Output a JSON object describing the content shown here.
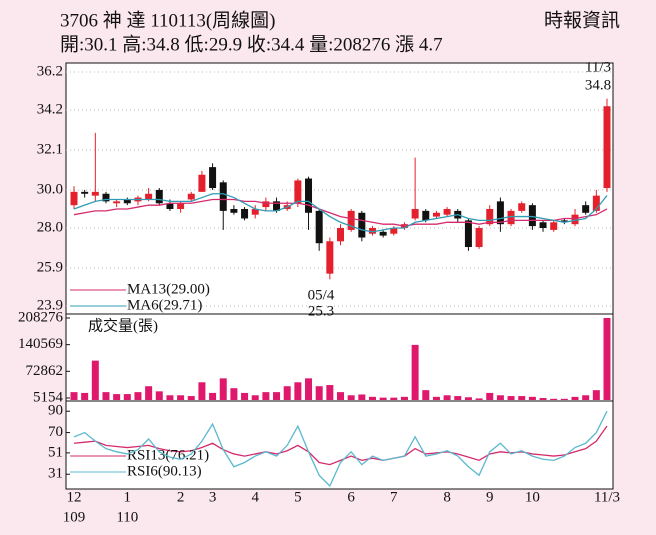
{
  "header": {
    "title": "3706  神    達 110113(周線圖)",
    "source": "時報資訊",
    "quote": "開:30.1 高:34.8 低:29.9 收:34.4 量:208276 漲 4.7"
  },
  "chart_data": [
    {
      "type": "candlestick",
      "categories": [
        "12",
        null,
        null,
        null,
        null,
        "1",
        null,
        null,
        null,
        null,
        "2",
        null,
        null,
        "3",
        null,
        null,
        null,
        "4",
        null,
        null,
        null,
        "5",
        null,
        null,
        null,
        null,
        "6",
        null,
        null,
        null,
        "7",
        null,
        null,
        null,
        null,
        "8",
        null,
        null,
        null,
        "9",
        null,
        null,
        null,
        "10",
        null,
        null,
        null,
        null,
        null,
        null,
        "11/3"
      ],
      "category_sublabels": [
        "109",
        null,
        null,
        null,
        null,
        "110",
        null,
        null,
        null,
        null,
        null,
        null,
        null,
        null,
        null,
        null,
        null,
        null,
        null,
        null,
        null,
        null,
        null,
        null,
        null,
        null,
        null,
        null,
        null,
        null,
        null,
        null,
        null,
        null,
        null,
        null,
        null,
        null,
        null,
        null,
        null,
        null,
        null,
        null,
        null,
        null,
        null,
        null,
        null,
        null,
        null
      ],
      "open": [
        29.2,
        29.9,
        29.7,
        29.8,
        29.3,
        29.5,
        29.4,
        29.5,
        30.0,
        29.3,
        29.0,
        29.5,
        29.9,
        31.2,
        30.4,
        29.0,
        29.0,
        28.7,
        29.1,
        29.4,
        29.0,
        29.3,
        30.6,
        28.9,
        25.6,
        27.3,
        27.9,
        28.8,
        27.7,
        27.8,
        27.7,
        28.0,
        28.5,
        28.9,
        28.6,
        28.7,
        28.9,
        28.4,
        27.0,
        28.2,
        29.4,
        28.2,
        28.9,
        29.2,
        28.3,
        27.9,
        28.4,
        28.2,
        29.2,
        28.9,
        30.1
      ],
      "high": [
        30.2,
        30.0,
        33.0,
        29.9,
        29.5,
        29.6,
        29.7,
        30.1,
        30.1,
        29.5,
        29.4,
        29.9,
        31.0,
        31.4,
        30.5,
        29.2,
        29.1,
        29.2,
        29.6,
        29.6,
        29.4,
        30.6,
        30.7,
        29.0,
        27.5,
        28.2,
        29.0,
        28.9,
        28.1,
        27.9,
        28.1,
        28.3,
        31.7,
        29.0,
        28.9,
        29.1,
        29.0,
        28.5,
        28.1,
        29.2,
        29.6,
        29.0,
        29.4,
        29.3,
        28.4,
        28.4,
        28.5,
        29.0,
        29.4,
        30.0,
        34.8
      ],
      "low": [
        29.0,
        29.6,
        29.4,
        29.3,
        29.1,
        29.2,
        29.2,
        29.4,
        29.2,
        28.9,
        28.8,
        29.4,
        29.9,
        30.0,
        27.9,
        28.7,
        28.4,
        28.5,
        28.9,
        28.8,
        28.9,
        29.1,
        27.9,
        26.8,
        25.3,
        27.1,
        27.8,
        27.3,
        27.6,
        27.5,
        27.6,
        27.9,
        28.4,
        28.3,
        28.5,
        28.6,
        28.3,
        26.8,
        26.9,
        28.1,
        27.8,
        28.1,
        28.8,
        27.9,
        27.8,
        27.8,
        28.2,
        28.1,
        28.7,
        28.8,
        29.9
      ],
      "close": [
        29.9,
        29.8,
        29.9,
        29.4,
        29.4,
        29.3,
        29.6,
        29.8,
        29.3,
        29.0,
        29.3,
        29.8,
        30.8,
        30.1,
        28.9,
        28.8,
        28.5,
        29.0,
        29.4,
        28.9,
        29.2,
        30.5,
        28.8,
        27.2,
        27.3,
        28.0,
        28.9,
        27.5,
        28.0,
        27.6,
        28.0,
        28.2,
        29.0,
        28.4,
        28.8,
        29.0,
        28.5,
        27.0,
        28.0,
        29.0,
        28.2,
        28.9,
        29.3,
        28.1,
        28.0,
        28.3,
        28.3,
        28.7,
        28.8,
        29.7,
        34.4
      ],
      "up_color": "#e3202b",
      "down_color": "#111111",
      "series": [
        {
          "name": "MA13(29.00)",
          "color": "#d52b6c",
          "values": [
            28.7,
            28.8,
            28.9,
            28.9,
            29.0,
            29.0,
            29.1,
            29.2,
            29.2,
            29.3,
            29.3,
            29.3,
            29.4,
            29.5,
            29.5,
            29.5,
            29.4,
            29.4,
            29.3,
            29.3,
            29.3,
            29.3,
            29.2,
            29.0,
            28.8,
            28.6,
            28.5,
            28.4,
            28.3,
            28.2,
            28.2,
            28.1,
            28.2,
            28.2,
            28.2,
            28.3,
            28.3,
            28.3,
            28.2,
            28.3,
            28.3,
            28.4,
            28.4,
            28.4,
            28.4,
            28.4,
            28.5,
            28.5,
            28.6,
            28.7,
            29.0
          ]
        },
        {
          "name": "MA6(29.71)",
          "color": "#2f9cb5",
          "values": [
            29.0,
            29.2,
            29.4,
            29.5,
            29.5,
            29.5,
            29.5,
            29.5,
            29.5,
            29.4,
            29.4,
            29.4,
            29.6,
            29.8,
            29.8,
            29.6,
            29.3,
            29.0,
            28.9,
            28.9,
            29.1,
            29.4,
            29.4,
            29.0,
            28.6,
            28.3,
            28.1,
            27.9,
            27.8,
            27.9,
            28.0,
            28.0,
            28.3,
            28.4,
            28.5,
            28.6,
            28.7,
            28.5,
            28.4,
            28.4,
            28.5,
            28.6,
            28.6,
            28.6,
            28.5,
            28.4,
            28.3,
            28.4,
            28.5,
            29.0,
            29.71
          ]
        }
      ],
      "ylim": [
        23.9,
        36.2
      ],
      "yticks": [
        36.2,
        34.2,
        32.1,
        {
          "value": 30,
          "label": "30.0"
        },
        {
          "value": 28,
          "label": "28.0"
        },
        25.9,
        23.9
      ],
      "grid": true,
      "annotations": [
        {
          "text": "11/3"
        },
        {
          "text": "34.8"
        },
        {
          "text": "05/4"
        },
        {
          "text": "25.3"
        }
      ]
    },
    {
      "type": "bar",
      "title": "成交量(張)",
      "color": "#e0186c",
      "values": [
        20000,
        18000,
        100000,
        20000,
        15000,
        15000,
        20000,
        35000,
        22000,
        12000,
        12000,
        10000,
        45000,
        18000,
        55000,
        30000,
        18000,
        12000,
        20000,
        20000,
        35000,
        45000,
        55000,
        35000,
        38000,
        20000,
        12000,
        14000,
        8000,
        6000,
        6000,
        8000,
        140000,
        25000,
        8000,
        12000,
        10000,
        7000,
        4000,
        18000,
        12000,
        10000,
        10000,
        8000,
        5000,
        3000,
        3000,
        8000,
        12000,
        25000,
        208276
      ],
      "ylim": [
        0,
        208276
      ],
      "yticks": [
        208276,
        140569,
        72862,
        5154
      ]
    },
    {
      "type": "line",
      "series": [
        {
          "name": "RSI13(76.21)",
          "color": "#d52b6c",
          "values": [
            60,
            61,
            62,
            58,
            57,
            56,
            57,
            58,
            55,
            53,
            52,
            53,
            56,
            60,
            54,
            50,
            48,
            50,
            52,
            50,
            53,
            58,
            52,
            42,
            40,
            44,
            48,
            44,
            46,
            44,
            46,
            48,
            55,
            50,
            51,
            52,
            50,
            47,
            44,
            50,
            52,
            51,
            52,
            50,
            49,
            48,
            49,
            52,
            55,
            62,
            76.21
          ]
        },
        {
          "name": "RSI6(90.13)",
          "color": "#5bb8d0",
          "values": [
            66,
            70,
            62,
            55,
            52,
            50,
            54,
            64,
            52,
            47,
            45,
            50,
            62,
            78,
            54,
            38,
            42,
            48,
            52,
            48,
            58,
            76,
            52,
            30,
            20,
            42,
            52,
            40,
            48,
            44,
            46,
            48,
            66,
            48,
            50,
            53,
            48,
            38,
            30,
            52,
            60,
            50,
            53,
            48,
            45,
            44,
            48,
            56,
            60,
            70,
            90.13
          ]
        }
      ],
      "ylim": [
        20,
        93
      ],
      "yticks": [
        90,
        70,
        51,
        31
      ]
    }
  ]
}
